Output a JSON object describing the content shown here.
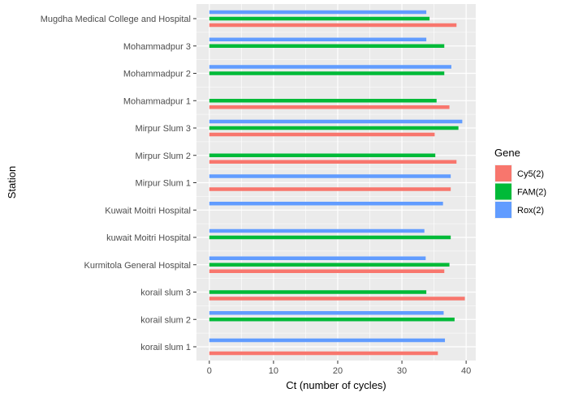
{
  "chart_data": {
    "type": "bar",
    "orientation": "horizontal",
    "xlabel": "Ct (number of cycles)",
    "ylabel": "Station",
    "xlim": [
      -2,
      41.5
    ],
    "xticks": [
      0,
      10,
      20,
      30,
      40
    ],
    "grid": true,
    "legend_position": "right",
    "legend_title": "Gene",
    "categories": [
      "korail slum 1",
      "korail slum 2",
      "korail slum 3",
      "Kurmitola General Hospital",
      "kuwait Moitri Hospital",
      "Kuwait Moitri Hospital",
      "Mirpur Slum 1",
      "Mirpur Slum 2",
      "Mirpur Slum 3",
      "Mohammadpur 1",
      "Mohammadpur 2",
      "Mohammadpur 3",
      "Mugdha Medical College and Hospital"
    ],
    "series": [
      {
        "name": "Cy5(2)",
        "color": "#F8766D",
        "values": [
          35.6,
          null,
          39.8,
          36.6,
          null,
          null,
          37.6,
          38.5,
          35.1,
          37.4,
          null,
          null,
          38.5
        ]
      },
      {
        "name": "FAM(2)",
        "color": "#00BA38",
        "values": [
          null,
          38.2,
          33.8,
          37.4,
          37.6,
          null,
          null,
          35.2,
          38.8,
          35.4,
          36.6,
          36.6,
          34.3
        ]
      },
      {
        "name": "Rox(2)",
        "color": "#619CFF",
        "values": [
          36.7,
          36.5,
          null,
          33.7,
          33.5,
          36.4,
          37.6,
          null,
          39.4,
          null,
          37.7,
          33.8,
          33.8
        ]
      }
    ]
  }
}
